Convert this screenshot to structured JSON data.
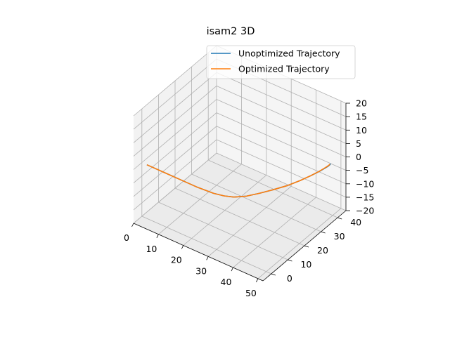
{
  "chart_data": {
    "type": "line",
    "title": "isam2 3D",
    "xlabel": "",
    "ylabel": "",
    "zlabel": "",
    "xlim": [
      0,
      52
    ],
    "ylim": [
      -5,
      45
    ],
    "zlim": [
      -20,
      20
    ],
    "x_ticks": [
      0,
      10,
      20,
      30,
      40,
      50
    ],
    "y_ticks": [
      0,
      10,
      20,
      30,
      40
    ],
    "z_ticks": [
      -20,
      -15,
      -10,
      -5,
      0,
      5,
      10,
      15,
      20
    ],
    "grid": true,
    "legend_position": "top-right",
    "series": [
      {
        "name": "Unoptimized Trajectory",
        "color": "#1f77b4",
        "x": [
          2.0,
          8.0,
          15.0,
          22.0,
          28.5,
          32.0,
          35.0,
          38.0,
          40.5,
          43.0,
          45.5,
          47.3,
          48.6,
          49.5,
          50.0,
          50.2,
          50.2,
          50.1
        ],
        "y": [
          0.0,
          0.0,
          0.0,
          0.0,
          0.5,
          1.5,
          3.0,
          6.0,
          10.0,
          14.5,
          19.5,
          24.5,
          29.0,
          32.8,
          35.5,
          37.0,
          38.0,
          38.6
        ],
        "z": [
          0.0,
          0.0,
          0.0,
          0.0,
          0.0,
          0.0,
          0.0,
          0.0,
          0.0,
          0.0,
          0.0,
          0.0,
          0.0,
          0.0,
          0.0,
          0.0,
          0.0,
          0.0
        ]
      },
      {
        "name": "Optimized Trajectory",
        "color": "#ff7f0e",
        "x": [
          2.0,
          8.0,
          15.0,
          22.0,
          28.5,
          32.0,
          35.0,
          38.0,
          40.5,
          43.0,
          45.5,
          47.3,
          48.6,
          49.4,
          49.8,
          50.0,
          50.1,
          50.0
        ],
        "y": [
          0.0,
          0.0,
          0.0,
          0.0,
          0.5,
          1.5,
          3.0,
          6.0,
          10.0,
          14.5,
          19.5,
          24.5,
          29.0,
          32.5,
          35.0,
          36.5,
          37.6,
          38.3
        ],
        "z": [
          0.0,
          0.0,
          0.0,
          0.0,
          0.0,
          0.0,
          0.0,
          0.0,
          0.0,
          0.0,
          0.0,
          0.0,
          0.0,
          0.0,
          0.0,
          0.0,
          0.0,
          0.0
        ]
      }
    ]
  }
}
